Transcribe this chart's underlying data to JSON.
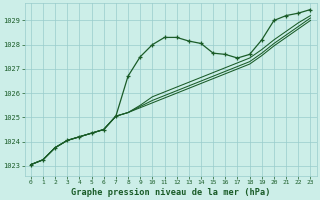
{
  "title": "Graphe pression niveau de la mer (hPa)",
  "bg_color": "#cceee8",
  "grid_color": "#99cccc",
  "line_color": "#1a5c28",
  "ylim": [
    1022.6,
    1029.7
  ],
  "xlim": [
    -0.5,
    23.5
  ],
  "yticks": [
    1023,
    1024,
    1025,
    1026,
    1027,
    1028,
    1029
  ],
  "xticks": [
    0,
    1,
    2,
    3,
    4,
    5,
    6,
    7,
    8,
    9,
    10,
    11,
    12,
    13,
    14,
    15,
    16,
    17,
    18,
    19,
    20,
    21,
    22,
    23
  ],
  "series": [
    [
      1023.05,
      1023.25,
      1023.75,
      1024.05,
      1024.2,
      1024.35,
      1024.5,
      1025.05,
      1026.7,
      1027.5,
      1028.0,
      1028.3,
      1028.3,
      1028.15,
      1028.05,
      1027.65,
      1027.6,
      1027.45,
      1027.6,
      1028.2,
      1029.0,
      1029.2,
      1029.3,
      1029.45
    ],
    [
      1023.05,
      1023.25,
      1023.75,
      1024.05,
      1024.2,
      1024.35,
      1024.5,
      1025.05,
      1025.2,
      1025.5,
      1025.85,
      1026.05,
      1026.25,
      1026.45,
      1026.65,
      1026.85,
      1027.05,
      1027.25,
      1027.45,
      1027.8,
      1028.2,
      1028.55,
      1028.9,
      1029.2
    ],
    [
      1023.05,
      1023.25,
      1023.75,
      1024.05,
      1024.2,
      1024.35,
      1024.5,
      1025.05,
      1025.2,
      1025.45,
      1025.7,
      1025.9,
      1026.1,
      1026.3,
      1026.5,
      1026.7,
      1026.9,
      1027.1,
      1027.3,
      1027.65,
      1028.05,
      1028.4,
      1028.75,
      1029.1
    ],
    [
      1023.05,
      1023.25,
      1023.75,
      1024.05,
      1024.2,
      1024.35,
      1024.5,
      1025.05,
      1025.2,
      1025.4,
      1025.6,
      1025.8,
      1026.0,
      1026.2,
      1026.4,
      1026.6,
      1026.8,
      1027.0,
      1027.2,
      1027.55,
      1027.95,
      1028.3,
      1028.65,
      1029.0
    ]
  ],
  "marker_series_idx": 0,
  "marker_series_extra": [
    {
      "x": [
        0,
        1,
        2,
        3,
        4,
        5,
        6,
        7,
        8,
        9,
        10,
        11,
        12,
        13,
        14,
        15,
        16,
        17,
        18,
        19,
        20,
        21,
        22,
        23
      ],
      "y": [
        1023.05,
        1023.25,
        1023.75,
        1024.05,
        1024.2,
        1024.35,
        1024.5,
        1025.05,
        1026.7,
        1027.5,
        1028.0,
        1028.3,
        1028.3,
        1028.15,
        1028.05,
        1027.65,
        1027.6,
        1027.45,
        1027.6,
        1028.2,
        1029.0,
        1029.2,
        1029.3,
        1029.45
      ]
    }
  ]
}
